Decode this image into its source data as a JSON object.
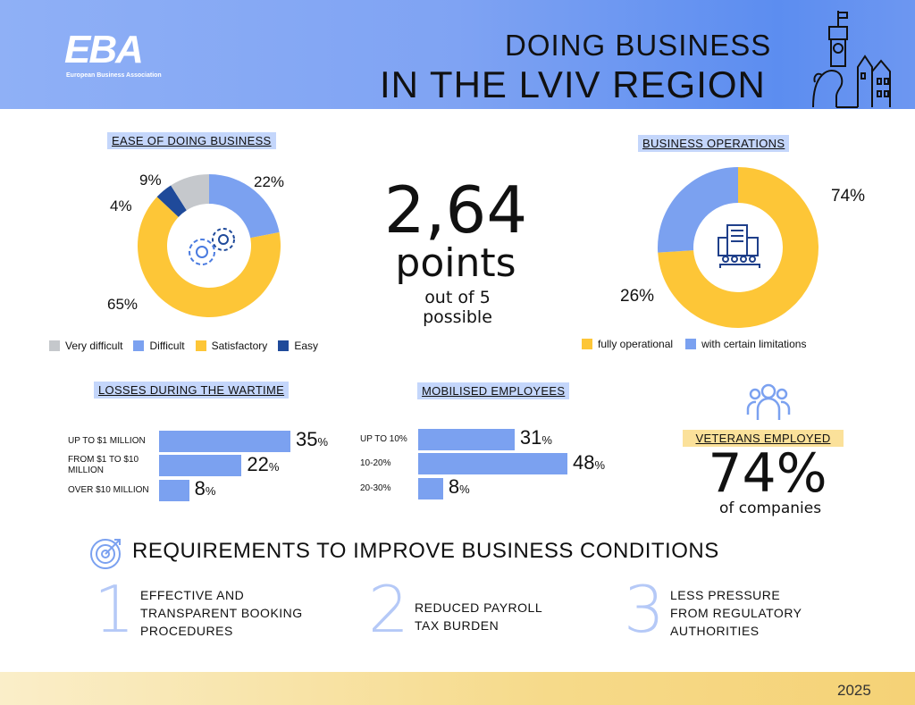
{
  "header": {
    "logo": "EBA",
    "logo_sub": "European Business Association",
    "title_line1": "DOING BUSINESS",
    "title_line2": "IN THE LVIV REGION"
  },
  "colors": {
    "yellow": "#fdc637",
    "blue": "#7ba1f0",
    "grey": "#c5c8cc",
    "navy": "#1f4a9a"
  },
  "chart_data": [
    {
      "type": "pie",
      "title": "EASE OF DOING BUSINESS",
      "categories": [
        "Difficult",
        "Satisfactory",
        "Easy",
        "Very difficult"
      ],
      "values": [
        22,
        65,
        4,
        9
      ],
      "labels": [
        "22%",
        "65%",
        "4%",
        "9%"
      ],
      "colors": [
        "#7ba1f0",
        "#fdc637",
        "#1f4a9a",
        "#c5c8cc"
      ],
      "legend": [
        "Very difficult",
        "Difficult",
        "Satisfactory",
        "Easy"
      ],
      "legend_colors": [
        "#c5c8cc",
        "#7ba1f0",
        "#fdc637",
        "#1f4a9a"
      ],
      "legend_placement": "bottom",
      "center_icon": "gears-icon"
    },
    {
      "type": "pie",
      "title": "BUSINESS OPERATIONS",
      "categories": [
        "fully operational",
        "with certain limitations"
      ],
      "values": [
        74,
        26
      ],
      "labels": [
        "74%",
        "26%"
      ],
      "colors": [
        "#fdc637",
        "#7ba1f0"
      ],
      "legend_placement": "bottom",
      "center_icon": "office-building-icon"
    },
    {
      "type": "bar",
      "orientation": "horizontal",
      "title": "LOSSES DURING THE WARTIME",
      "categories": [
        "UP TO $1 MILLION",
        "FROM $1 TO $10 MILLION",
        "OVER $10 MILLION"
      ],
      "values": [
        35,
        22,
        8
      ],
      "labels": [
        "35",
        "22",
        "8"
      ]
    },
    {
      "type": "bar",
      "orientation": "horizontal",
      "title": "MOBILISED EMPLOYEES",
      "categories": [
        "UP TO 10%",
        "10-20%",
        "20-30%"
      ],
      "values": [
        31,
        48,
        8
      ],
      "labels": [
        "31",
        "48",
        "8"
      ]
    }
  ],
  "score": {
    "value": "2,64",
    "unit": "points",
    "sub1": "out of 5",
    "sub2": "possible"
  },
  "veterans": {
    "title": "VETERANS EMPLOYED",
    "value": "74%",
    "sub": "of companies"
  },
  "requirements": {
    "title": "REQUIREMENTS TO IMPROVE BUSINESS CONDITIONS",
    "items": [
      {
        "n": "1",
        "lines": [
          "EFFECTIVE AND",
          "TRANSPARENT BOOKING",
          "PROCEDURES"
        ]
      },
      {
        "n": "2",
        "lines": [
          "REDUCED PAYROLL",
          "TAX BURDEN"
        ]
      },
      {
        "n": "3",
        "lines": [
          "LESS PRESSURE",
          "FROM REGULATORY",
          "AUTHORITIES"
        ]
      }
    ]
  },
  "percent_sign": "%",
  "footer": {
    "year": "2025"
  }
}
